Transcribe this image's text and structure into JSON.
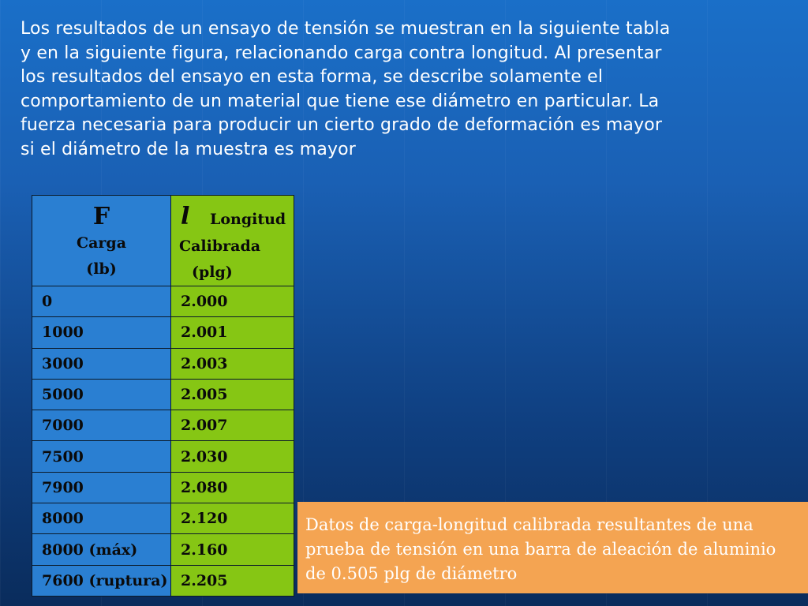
{
  "intro_text": "Los resultados de un ensayo de tensión se muestran en la siguiente tabla\ny en la siguiente figura, relacionando carga contra longitud. Al presentar\nlos resultados del ensayo en esta forma, se describe solamente el\ncomportamiento de un material que tiene ese diámetro en particular. La\nfuerza necesaria para producir  un cierto grado de deformación es mayor\nsi el diámetro de la muestra es mayor",
  "table": {
    "col1": {
      "symbol": "F",
      "label": "Carga",
      "unit": "(lb)"
    },
    "col2": {
      "symbol": "l",
      "label": "Longitud",
      "label2": "Calibrada",
      "unit": "(plg)"
    },
    "rows": [
      {
        "load": "0",
        "length": "2.000"
      },
      {
        "load": "1000",
        "length": "2.001"
      },
      {
        "load": "3000",
        "length": "2.003"
      },
      {
        "load": "5000",
        "length": "2.005"
      },
      {
        "load": "7000",
        "length": "2.007"
      },
      {
        "load": "7500",
        "length": "2.030"
      },
      {
        "load": "7900",
        "length": "2.080"
      },
      {
        "load": "8000",
        "length": "2.120"
      },
      {
        "load": "8000 (máx)",
        "length": "2.160"
      },
      {
        "load": "7600 (ruptura)",
        "length": "2.205"
      }
    ]
  },
  "caption": "Datos de carga-longitud calibrada resultantes de una\nprueba de tensión en una barra de aleación de aluminio\nde 0.505 plg de diámetro",
  "colors": {
    "background": "#1a60b4",
    "table_blue": "#2a7fd2",
    "table_green": "#86c614",
    "caption_orange": "#f4a452"
  }
}
